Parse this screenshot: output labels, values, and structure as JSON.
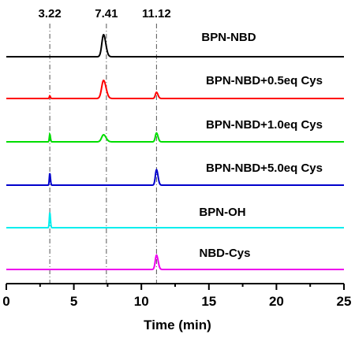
{
  "chart_data": {
    "type": "line",
    "xlabel": "Time (min)",
    "xlim": [
      0,
      25
    ],
    "x_ticks": [
      "0",
      "5",
      "10",
      "15",
      "20",
      "25"
    ],
    "x_tick_values": [
      0,
      5,
      10,
      15,
      20,
      25
    ],
    "reference_lines": [
      {
        "x": 3.22,
        "label": "3.22"
      },
      {
        "x": 7.41,
        "label": "7.41"
      },
      {
        "x": 11.12,
        "label": "11.12"
      }
    ],
    "series": [
      {
        "name": "BPN-NBD",
        "color": "#000000",
        "peaks": [
          {
            "x": 7.2,
            "height": 1.0,
            "width": 0.18
          }
        ]
      },
      {
        "name": "BPN-NBD+0.5eq Cys",
        "color": "#ff0000",
        "peaks": [
          {
            "x": 3.22,
            "height": 0.12,
            "width": 0.05
          },
          {
            "x": 7.2,
            "height": 0.82,
            "width": 0.2
          },
          {
            "x": 11.12,
            "height": 0.28,
            "width": 0.12
          }
        ]
      },
      {
        "name": "BPN-NBD+1.0eq Cys",
        "color": "#00dd00",
        "peaks": [
          {
            "x": 3.22,
            "height": 0.35,
            "width": 0.05
          },
          {
            "x": 7.2,
            "height": 0.32,
            "width": 0.2
          },
          {
            "x": 11.12,
            "height": 0.4,
            "width": 0.12
          }
        ]
      },
      {
        "name": "BPN-NBD+5.0eq Cys",
        "color": "#0000cc",
        "peaks": [
          {
            "x": 3.22,
            "height": 0.55,
            "width": 0.05
          },
          {
            "x": 11.12,
            "height": 0.7,
            "width": 0.12
          }
        ]
      },
      {
        "name": "BPN-OH",
        "color": "#00eeee",
        "peaks": [
          {
            "x": 3.22,
            "height": 0.7,
            "width": 0.05
          }
        ]
      },
      {
        "name": "NBD-Cys",
        "color": "#ee00ee",
        "peaks": [
          {
            "x": 11.12,
            "height": 0.65,
            "width": 0.13
          }
        ]
      }
    ]
  }
}
